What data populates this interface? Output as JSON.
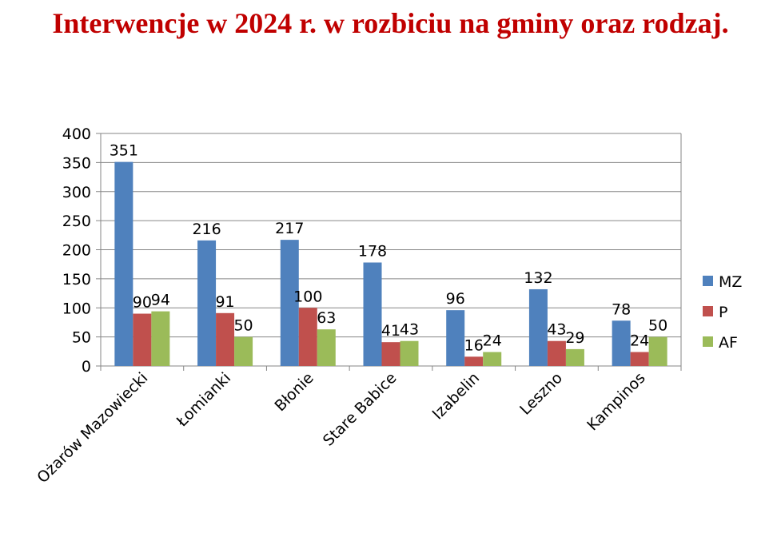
{
  "chart_data": {
    "type": "bar",
    "title": "Interwencje w 2024 r. w rozbiciu na gminy oraz rodzaj.",
    "xlabel": "",
    "ylabel": "",
    "ylim": [
      0,
      400
    ],
    "yticks": [
      0,
      50,
      100,
      150,
      200,
      250,
      300,
      350,
      400
    ],
    "grid": true,
    "legend": "right",
    "categories": [
      "Ożarów Mazowiecki",
      "Łomianki",
      "Błonie",
      "Stare Babice",
      "Izabelin",
      "Leszno",
      "Kampinos"
    ],
    "series": [
      {
        "name": "MZ",
        "color": "#4f81bd",
        "values": [
          351,
          216,
          217,
          178,
          96,
          132,
          78
        ]
      },
      {
        "name": "P",
        "color": "#c0504d",
        "values": [
          90,
          91,
          100,
          41,
          16,
          43,
          24
        ]
      },
      {
        "name": "AF",
        "color": "#9bbb59",
        "values": [
          94,
          50,
          63,
          43,
          24,
          29,
          50
        ]
      }
    ]
  }
}
